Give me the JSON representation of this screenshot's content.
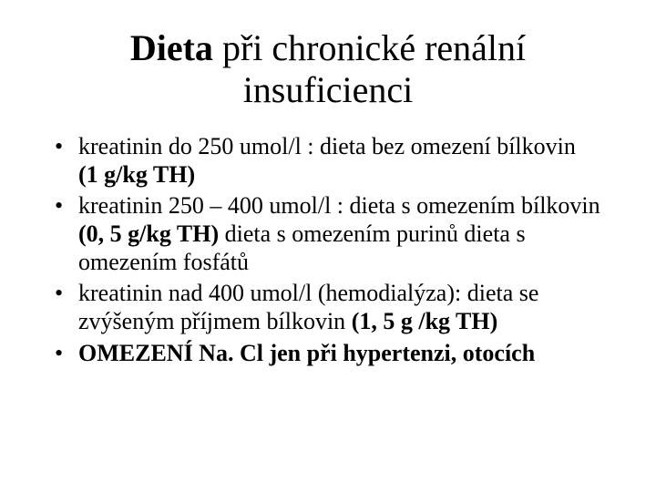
{
  "colors": {
    "background": "#ffffff",
    "text": "#000000"
  },
  "typography": {
    "title_fontsize": 40,
    "body_fontsize": 26,
    "font_family": "Times New Roman"
  },
  "title": {
    "bold_part": "Dieta",
    "rest": " při chronické renální insuficienci"
  },
  "bullets": [
    {
      "pre": "kreatinin do 250 umol/l :                        dieta bez omezení bílkovin ",
      "bold": "(1 g/kg TH)",
      "post": ""
    },
    {
      "pre": "kreatinin 250 – 400 umol/l :                       dieta s omezením bílkovin ",
      "bold": "(0, 5 g/kg TH)",
      "post": "            dieta s omezením purinů                         dieta s omezením fosfátů"
    },
    {
      "pre": "kreatinin nad 400 umol/l (hemodialýza):     dieta se zvýšeným příjmem bílkovin                ",
      "bold": "(1, 5 g /kg TH)",
      "post": ""
    },
    {
      "pre": "",
      "bold": "OMEZENÍ Na. Cl jen při hypertenzi, otocích",
      "post": ""
    }
  ]
}
